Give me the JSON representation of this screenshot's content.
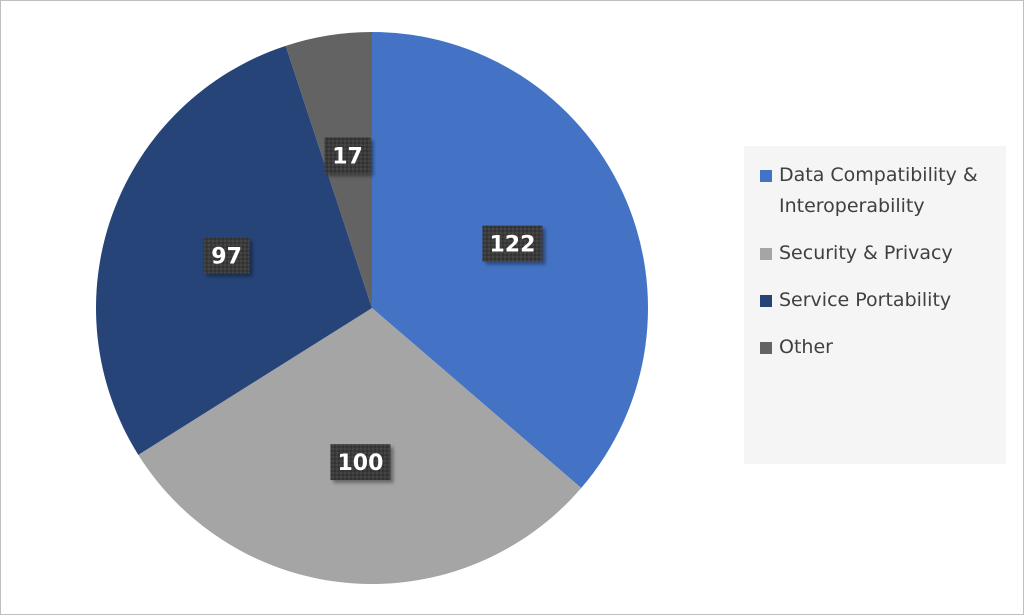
{
  "chart_data": {
    "type": "pie",
    "categories": [
      "Data Compatibility & Interoperability",
      "Security & Privacy",
      "Service Portability",
      "Other"
    ],
    "values": [
      122,
      100,
      97,
      17
    ],
    "colors": [
      "#4472C4",
      "#A5A5A5",
      "#264478",
      "#636363"
    ],
    "data_labels": [
      "122",
      "100",
      "97",
      "17"
    ],
    "start_angle_deg": 0,
    "direction": "clockwise",
    "legend_position": "right",
    "label_style": "dark box with white bold text"
  },
  "legend": {
    "items": [
      {
        "label": "Data Compatibility & Interoperability",
        "color": "#4472C4"
      },
      {
        "label": "Security & Privacy",
        "color": "#A5A5A5"
      },
      {
        "label": "Service Portability",
        "color": "#264478"
      },
      {
        "label": "Other",
        "color": "#636363"
      }
    ]
  }
}
